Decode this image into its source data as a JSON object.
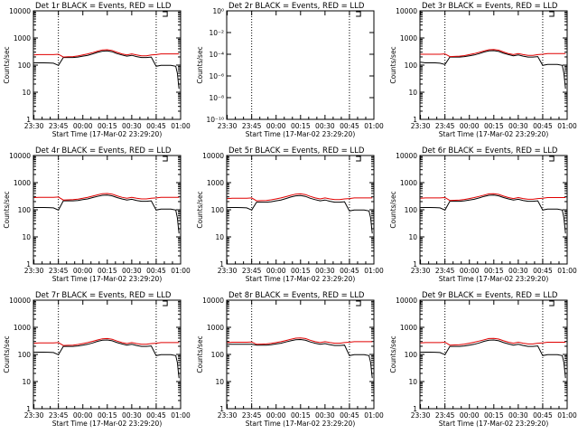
{
  "colors": {
    "background": "#ffffff",
    "events": "#000000",
    "lld": "#e00000",
    "axes": "#000000"
  },
  "chart_data": [
    {
      "type": "line",
      "title": "Det 1r BLACK = Events, RED = LLD",
      "xlabel": "Start Time (17-Mar-02 23:29:20)",
      "ylabel": "Counts/sec",
      "x_ticks": [
        "23:30",
        "23:45",
        "00:00",
        "00:15",
        "00:30",
        "00:45",
        "01:00"
      ],
      "y_scale": "log",
      "ylim": [
        1,
        15000
      ],
      "y_ticks": [
        "1",
        "10",
        "100",
        "1000",
        "10000"
      ],
      "xlim": [
        -0.33,
        90
      ],
      "vlines": [
        15,
        75
      ],
      "x": [
        0,
        3,
        6,
        9,
        12,
        15,
        18,
        21,
        24,
        27,
        30,
        33,
        36,
        39,
        42,
        45,
        48,
        51,
        54,
        57,
        60,
        63,
        66,
        69,
        72,
        75,
        78,
        81,
        84,
        87,
        88,
        89
      ],
      "series": [
        {
          "name": "Events",
          "values": [
            150,
            150,
            150,
            148,
            145,
            120,
            240,
            240,
            240,
            250,
            270,
            290,
            330,
            380,
            420,
            430,
            400,
            340,
            300,
            270,
            290,
            260,
            240,
            240,
            250,
            110,
            120,
            120,
            120,
            110,
            60,
            15
          ]
        },
        {
          "name": "LLD",
          "values": [
            300,
            310,
            310,
            310,
            310,
            320,
            250,
            255,
            260,
            275,
            300,
            330,
            370,
            420,
            470,
            480,
            450,
            380,
            330,
            300,
            330,
            300,
            280,
            280,
            300,
            310,
            330,
            330,
            330,
            330,
            330,
            330
          ]
        }
      ]
    },
    {
      "type": "line",
      "title": "Det 2r BLACK = Events, RED = LLD",
      "xlabel": "Start Time (17-Mar-02 23:29:20)",
      "ylabel": "Counts/sec",
      "x_ticks": [
        "23:30",
        "23:45",
        "00:00",
        "00:15",
        "00:30",
        "00:45",
        "01:00"
      ],
      "y_scale": "log",
      "ylim": [
        1e-10,
        1.0
      ],
      "y_ticks": [
        "10⁻¹⁰",
        "10⁻⁸",
        "10⁻⁶",
        "10⁻⁴",
        "10⁻²",
        "10⁰"
      ],
      "xlim": [
        -0.33,
        90
      ],
      "vlines": [
        15,
        75
      ],
      "x": [],
      "series": []
    },
    {
      "type": "line",
      "title": "Det 3r BLACK = Events, RED = LLD",
      "xlabel": "Start Time (17-Mar-02 23:29:20)",
      "ylabel": "Counts/sec",
      "x_ticks": [
        "23:30",
        "23:45",
        "00:00",
        "00:15",
        "00:30",
        "00:45",
        "01:00"
      ],
      "y_scale": "log",
      "ylim": [
        1,
        15000
      ],
      "y_ticks": [
        "1",
        "10",
        "100",
        "1000",
        "10000"
      ],
      "xlim": [
        -0.33,
        90
      ],
      "vlines": [
        15,
        75
      ],
      "x": [
        0,
        3,
        6,
        9,
        12,
        15,
        18,
        21,
        24,
        27,
        30,
        33,
        36,
        39,
        42,
        45,
        48,
        51,
        54,
        57,
        60,
        63,
        66,
        69,
        72,
        75,
        78,
        81,
        84,
        87,
        88,
        89
      ],
      "series": [
        {
          "name": "Events",
          "values": [
            160,
            150,
            150,
            150,
            145,
            130,
            250,
            250,
            250,
            260,
            280,
            300,
            340,
            390,
            430,
            440,
            410,
            350,
            310,
            280,
            300,
            270,
            250,
            250,
            260,
            120,
            130,
            130,
            130,
            120,
            60,
            15
          ]
        },
        {
          "name": "LLD",
          "values": [
            320,
            320,
            320,
            320,
            320,
            330,
            260,
            265,
            270,
            285,
            310,
            340,
            380,
            430,
            480,
            490,
            460,
            390,
            340,
            310,
            340,
            310,
            290,
            290,
            310,
            320,
            340,
            340,
            340,
            340,
            340,
            340
          ]
        }
      ]
    },
    {
      "type": "line",
      "title": "Det 4r BLACK = Events, RED = LLD",
      "xlabel": "Start Time (17-Mar-02 23:29:20)",
      "ylabel": "Counts/sec",
      "x_ticks": [
        "23:30",
        "23:45",
        "00:00",
        "00:15",
        "00:30",
        "00:45",
        "01:00"
      ],
      "y_scale": "log",
      "ylim": [
        1,
        15000
      ],
      "y_ticks": [
        "1",
        "10",
        "100",
        "1000",
        "10000"
      ],
      "xlim": [
        -0.33,
        90
      ],
      "vlines": [
        15,
        75
      ],
      "x": [
        0,
        3,
        6,
        9,
        12,
        15,
        18,
        21,
        24,
        27,
        30,
        33,
        36,
        39,
        42,
        45,
        48,
        51,
        54,
        57,
        60,
        63,
        66,
        69,
        72,
        75,
        78,
        81,
        84,
        87,
        88,
        89
      ],
      "series": [
        {
          "name": "Events",
          "values": [
            150,
            150,
            150,
            148,
            145,
            120,
            270,
            270,
            270,
            280,
            300,
            320,
            360,
            400,
            440,
            450,
            420,
            360,
            320,
            290,
            310,
            280,
            260,
            260,
            270,
            120,
            130,
            130,
            130,
            120,
            60,
            15
          ]
        },
        {
          "name": "LLD",
          "values": [
            360,
            370,
            370,
            370,
            370,
            380,
            290,
            295,
            300,
            315,
            340,
            370,
            410,
            460,
            510,
            520,
            490,
            420,
            370,
            340,
            370,
            340,
            320,
            320,
            340,
            350,
            370,
            370,
            370,
            370,
            370,
            370
          ]
        }
      ]
    },
    {
      "type": "line",
      "title": "Det 5r BLACK = Events, RED = LLD",
      "xlabel": "Start Time (17-Mar-02 23:29:20)",
      "ylabel": "Counts/sec",
      "x_ticks": [
        "23:30",
        "23:45",
        "00:00",
        "00:15",
        "00:30",
        "00:45",
        "01:00"
      ],
      "y_scale": "log",
      "ylim": [
        1,
        15000
      ],
      "y_ticks": [
        "1",
        "10",
        "100",
        "1000",
        "10000"
      ],
      "xlim": [
        -0.33,
        90
      ],
      "vlines": [
        15,
        75
      ],
      "x": [
        0,
        3,
        6,
        9,
        12,
        15,
        18,
        21,
        24,
        27,
        30,
        33,
        36,
        39,
        42,
        45,
        48,
        51,
        54,
        57,
        60,
        63,
        66,
        69,
        72,
        75,
        78,
        81,
        84,
        87,
        88,
        89
      ],
      "series": [
        {
          "name": "Events",
          "values": [
            150,
            150,
            150,
            148,
            145,
            120,
            240,
            240,
            240,
            250,
            270,
            290,
            330,
            380,
            420,
            430,
            400,
            340,
            300,
            270,
            290,
            260,
            240,
            240,
            250,
            110,
            120,
            120,
            120,
            110,
            60,
            15
          ]
        },
        {
          "name": "LLD",
          "values": [
            330,
            340,
            340,
            340,
            340,
            350,
            270,
            275,
            280,
            295,
            320,
            350,
            390,
            440,
            490,
            500,
            470,
            400,
            350,
            320,
            350,
            320,
            300,
            300,
            320,
            330,
            350,
            350,
            350,
            350,
            350,
            350
          ]
        }
      ]
    },
    {
      "type": "line",
      "title": "Det 6r BLACK = Events, RED = LLD",
      "xlabel": "Start Time (17-Mar-02 23:29:20)",
      "ylabel": "Counts/sec",
      "x_ticks": [
        "23:30",
        "23:45",
        "00:00",
        "00:15",
        "00:30",
        "00:45",
        "01:00"
      ],
      "y_scale": "log",
      "ylim": [
        1,
        15000
      ],
      "y_ticks": [
        "1",
        "10",
        "100",
        "1000",
        "10000"
      ],
      "xlim": [
        -0.33,
        90
      ],
      "vlines": [
        15,
        75
      ],
      "x": [
        0,
        3,
        6,
        9,
        12,
        15,
        18,
        21,
        24,
        27,
        30,
        33,
        36,
        39,
        42,
        45,
        48,
        51,
        54,
        57,
        60,
        63,
        66,
        69,
        72,
        75,
        78,
        81,
        84,
        87,
        88,
        89
      ],
      "series": [
        {
          "name": "Events",
          "values": [
            150,
            150,
            150,
            148,
            145,
            120,
            260,
            260,
            260,
            270,
            290,
            310,
            350,
            400,
            440,
            450,
            420,
            360,
            320,
            290,
            310,
            280,
            260,
            260,
            270,
            120,
            130,
            130,
            130,
            120,
            60,
            15
          ]
        },
        {
          "name": "LLD",
          "values": [
            340,
            350,
            350,
            350,
            350,
            360,
            280,
            285,
            290,
            305,
            330,
            360,
            400,
            450,
            500,
            510,
            480,
            410,
            360,
            330,
            360,
            330,
            310,
            310,
            330,
            340,
            360,
            360,
            360,
            360,
            360,
            360
          ]
        }
      ]
    },
    {
      "type": "line",
      "title": "Det 7r BLACK = Events, RED = LLD",
      "xlabel": "Start Time (17-Mar-02 23:29:20)",
      "ylabel": "Counts/sec",
      "x_ticks": [
        "23:30",
        "23:45",
        "00:00",
        "00:15",
        "00:30",
        "00:45",
        "01:00"
      ],
      "y_scale": "log",
      "ylim": [
        1,
        15000
      ],
      "y_ticks": [
        "1",
        "10",
        "100",
        "1000",
        "10000"
      ],
      "xlim": [
        -0.33,
        90
      ],
      "vlines": [
        15,
        75
      ],
      "x": [
        0,
        3,
        6,
        9,
        12,
        15,
        18,
        21,
        24,
        27,
        30,
        33,
        36,
        39,
        42,
        45,
        48,
        51,
        54,
        57,
        60,
        63,
        66,
        69,
        72,
        75,
        78,
        81,
        84,
        87,
        88,
        89
      ],
      "series": [
        {
          "name": "Events",
          "values": [
            150,
            150,
            150,
            148,
            145,
            120,
            250,
            250,
            250,
            260,
            280,
            300,
            340,
            390,
            430,
            440,
            410,
            350,
            310,
            280,
            300,
            270,
            250,
            250,
            260,
            110,
            120,
            120,
            120,
            110,
            60,
            15
          ]
        },
        {
          "name": "LLD",
          "values": [
            330,
            340,
            340,
            340,
            340,
            350,
            270,
            275,
            280,
            295,
            320,
            350,
            390,
            440,
            490,
            500,
            470,
            400,
            350,
            320,
            350,
            320,
            300,
            300,
            320,
            330,
            350,
            350,
            350,
            350,
            350,
            350
          ]
        }
      ]
    },
    {
      "type": "line",
      "title": "Det 8r BLACK = Events, RED = LLD",
      "xlabel": "Start Time (17-Mar-02 23:29:20)",
      "ylabel": "Counts/sec",
      "x_ticks": [
        "23:30",
        "23:45",
        "00:00",
        "00:15",
        "00:30",
        "00:45",
        "01:00"
      ],
      "y_scale": "log",
      "ylim": [
        1,
        15000
      ],
      "y_ticks": [
        "1",
        "10",
        "100",
        "1000",
        "10000"
      ],
      "xlim": [
        -0.33,
        90
      ],
      "vlines": [
        15,
        75
      ],
      "x": [
        0,
        3,
        6,
        9,
        12,
        15,
        18,
        21,
        24,
        27,
        30,
        33,
        36,
        39,
        42,
        45,
        48,
        51,
        54,
        57,
        60,
        63,
        66,
        69,
        72,
        75,
        78,
        81,
        84,
        87,
        88,
        89
      ],
      "series": [
        {
          "name": "Events",
          "values": [
            300,
            300,
            300,
            300,
            300,
            300,
            280,
            280,
            280,
            290,
            310,
            330,
            370,
            410,
            450,
            460,
            430,
            370,
            330,
            300,
            320,
            290,
            270,
            270,
            280,
            110,
            120,
            120,
            120,
            110,
            60,
            15
          ]
        },
        {
          "name": "LLD",
          "values": [
            350,
            360,
            360,
            360,
            360,
            370,
            300,
            305,
            310,
            325,
            350,
            380,
            420,
            470,
            520,
            530,
            500,
            430,
            380,
            350,
            380,
            350,
            330,
            330,
            350,
            360,
            380,
            380,
            380,
            380,
            380,
            380
          ]
        }
      ]
    },
    {
      "type": "line",
      "title": "Det 9r BLACK = Events, RED = LLD",
      "xlabel": "Start Time (17-Mar-02 23:29:20)",
      "ylabel": "Counts/sec",
      "x_ticks": [
        "23:30",
        "23:45",
        "00:00",
        "00:15",
        "00:30",
        "00:45",
        "01:00"
      ],
      "y_scale": "log",
      "ylim": [
        1,
        15000
      ],
      "y_ticks": [
        "1",
        "10",
        "100",
        "1000",
        "10000"
      ],
      "xlim": [
        -0.33,
        90
      ],
      "vlines": [
        15,
        75
      ],
      "x": [
        0,
        3,
        6,
        9,
        12,
        15,
        18,
        21,
        24,
        27,
        30,
        33,
        36,
        39,
        42,
        45,
        48,
        51,
        54,
        57,
        60,
        63,
        66,
        69,
        72,
        75,
        78,
        81,
        84,
        87,
        88,
        89
      ],
      "series": [
        {
          "name": "Events",
          "values": [
            150,
            150,
            150,
            148,
            145,
            120,
            250,
            250,
            250,
            260,
            280,
            300,
            340,
            390,
            430,
            440,
            410,
            350,
            310,
            280,
            300,
            270,
            250,
            250,
            260,
            110,
            120,
            120,
            120,
            110,
            60,
            15
          ]
        },
        {
          "name": "LLD",
          "values": [
            340,
            350,
            350,
            350,
            350,
            360,
            280,
            285,
            290,
            305,
            330,
            360,
            400,
            450,
            500,
            510,
            480,
            410,
            360,
            330,
            360,
            330,
            310,
            310,
            330,
            340,
            360,
            360,
            360,
            360,
            360,
            360
          ]
        }
      ]
    }
  ]
}
